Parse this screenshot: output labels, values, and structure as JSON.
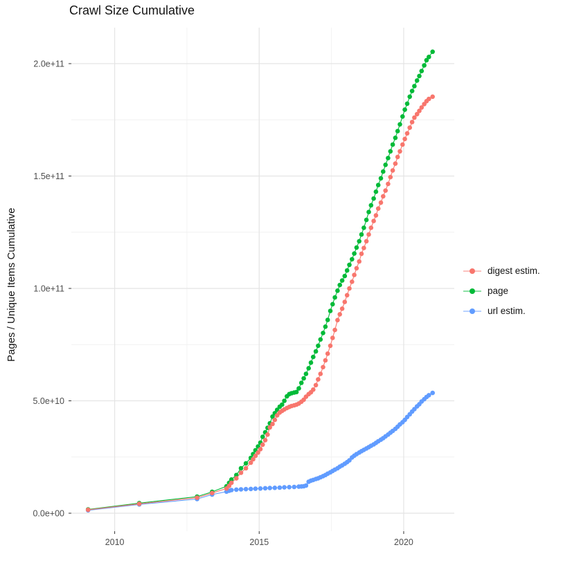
{
  "title": "Crawl Size Cumulative",
  "legend": {
    "position": "right",
    "items": [
      {
        "label": "digest estim.",
        "color": "#F8766D"
      },
      {
        "label": "page",
        "color": "#00BA38"
      },
      {
        "label": "url estim.",
        "color": "#619CFF"
      }
    ]
  },
  "colors": {
    "background": "#FFFFFF",
    "grid_major": "#E4E4E4",
    "grid_minor": "#F1F1F1",
    "tick_mark": "#333333",
    "tick_text": "#4D4D4D",
    "title_text": "#141414"
  },
  "chart_data": {
    "type": "scatter",
    "title": "Crawl Size Cumulative",
    "xlabel": "",
    "ylabel": "Pages / Unique Items Cumulative",
    "values_unit": "billion pages (multiply by 1e9)",
    "xlim": [
      2008.5,
      2021.75
    ],
    "ylim_billions": [
      -8,
      216
    ],
    "grid": "on",
    "legend_position": "right",
    "x_ticks": [
      {
        "value": 2010,
        "label": "2010"
      },
      {
        "value": 2015,
        "label": "2015"
      },
      {
        "value": 2020,
        "label": "2020"
      }
    ],
    "x_minor": [
      2012.5,
      2017.5
    ],
    "y_ticks": [
      {
        "value": 0,
        "label": "0.0e+00"
      },
      {
        "value": 50,
        "label": "5.0e+10"
      },
      {
        "value": 100,
        "label": "1.0e+11"
      },
      {
        "value": 150,
        "label": "1.5e+11"
      },
      {
        "value": 200,
        "label": "2.0e+11"
      }
    ],
    "y_minor": [
      25,
      75,
      125,
      175
    ],
    "series": [
      {
        "name": "url estim.",
        "color": "#619CFF",
        "points": [
          [
            2009.08,
            1.3
          ],
          [
            2010.85,
            3.9
          ],
          [
            2012.85,
            6.3
          ],
          [
            2013.37,
            8.3
          ],
          [
            2013.87,
            9.6
          ],
          [
            2013.96,
            10.0
          ],
          [
            2014.04,
            10.3
          ],
          [
            2014.21,
            10.5
          ],
          [
            2014.37,
            10.6
          ],
          [
            2014.54,
            10.7
          ],
          [
            2014.71,
            10.8
          ],
          [
            2014.87,
            10.9
          ],
          [
            2015.04,
            11.0
          ],
          [
            2015.21,
            11.1
          ],
          [
            2015.37,
            11.2
          ],
          [
            2015.54,
            11.3
          ],
          [
            2015.71,
            11.4
          ],
          [
            2015.87,
            11.5
          ],
          [
            2016.04,
            11.6
          ],
          [
            2016.21,
            11.7
          ],
          [
            2016.37,
            11.8
          ],
          [
            2016.46,
            11.9
          ],
          [
            2016.54,
            12.0
          ],
          [
            2016.62,
            12.3
          ],
          [
            2016.71,
            14.0
          ],
          [
            2016.79,
            14.5
          ],
          [
            2016.87,
            14.8
          ],
          [
            2016.96,
            15.2
          ],
          [
            2017.04,
            15.5
          ],
          [
            2017.12,
            16.0
          ],
          [
            2017.21,
            16.5
          ],
          [
            2017.29,
            17.0
          ],
          [
            2017.37,
            17.6
          ],
          [
            2017.46,
            18.2
          ],
          [
            2017.54,
            18.8
          ],
          [
            2017.62,
            19.4
          ],
          [
            2017.71,
            20.0
          ],
          [
            2017.79,
            20.7
          ],
          [
            2017.87,
            21.3
          ],
          [
            2017.96,
            22.0
          ],
          [
            2018.04,
            22.7
          ],
          [
            2018.12,
            23.5
          ],
          [
            2018.21,
            24.8
          ],
          [
            2018.29,
            25.6
          ],
          [
            2018.37,
            26.3
          ],
          [
            2018.46,
            27.0
          ],
          [
            2018.54,
            27.6
          ],
          [
            2018.62,
            28.2
          ],
          [
            2018.71,
            28.8
          ],
          [
            2018.79,
            29.4
          ],
          [
            2018.87,
            30.0
          ],
          [
            2018.96,
            30.6
          ],
          [
            2019.04,
            31.3
          ],
          [
            2019.12,
            32.0
          ],
          [
            2019.21,
            32.7
          ],
          [
            2019.29,
            33.4
          ],
          [
            2019.37,
            34.2
          ],
          [
            2019.46,
            35.0
          ],
          [
            2019.54,
            35.8
          ],
          [
            2019.62,
            36.6
          ],
          [
            2019.71,
            37.5
          ],
          [
            2019.79,
            38.5
          ],
          [
            2019.87,
            39.5
          ],
          [
            2019.96,
            40.5
          ],
          [
            2020.04,
            41.5
          ],
          [
            2020.12,
            42.8
          ],
          [
            2020.21,
            44.0
          ],
          [
            2020.29,
            45.2
          ],
          [
            2020.37,
            46.3
          ],
          [
            2020.46,
            47.5
          ],
          [
            2020.54,
            48.5
          ],
          [
            2020.62,
            49.7
          ],
          [
            2020.71,
            50.7
          ],
          [
            2020.79,
            51.7
          ],
          [
            2020.87,
            52.5
          ],
          [
            2021.0,
            53.5
          ]
        ]
      },
      {
        "name": "page",
        "color": "#00BA38",
        "points": [
          [
            2009.08,
            1.7
          ],
          [
            2010.85,
            4.5
          ],
          [
            2012.85,
            7.4
          ],
          [
            2013.37,
            9.5
          ],
          [
            2013.87,
            12.0
          ],
          [
            2013.96,
            13.5
          ],
          [
            2014.04,
            15.0
          ],
          [
            2014.21,
            17.0
          ],
          [
            2014.37,
            20.0
          ],
          [
            2014.54,
            22.2
          ],
          [
            2014.71,
            24.6
          ],
          [
            2014.79,
            26.3
          ],
          [
            2014.87,
            28.0
          ],
          [
            2014.96,
            29.7
          ],
          [
            2015.04,
            31.4
          ],
          [
            2015.12,
            34.0
          ],
          [
            2015.21,
            36.0
          ],
          [
            2015.29,
            38.0
          ],
          [
            2015.37,
            40.0
          ],
          [
            2015.46,
            43.0
          ],
          [
            2015.54,
            44.5
          ],
          [
            2015.62,
            46.0
          ],
          [
            2015.71,
            47.4
          ],
          [
            2015.79,
            48.3
          ],
          [
            2015.87,
            50.0
          ],
          [
            2015.96,
            52.0
          ],
          [
            2016.04,
            53.0
          ],
          [
            2016.12,
            53.4
          ],
          [
            2016.21,
            53.7
          ],
          [
            2016.29,
            53.9
          ],
          [
            2016.37,
            55.5
          ],
          [
            2016.46,
            58.0
          ],
          [
            2016.54,
            60.0
          ],
          [
            2016.62,
            62.0
          ],
          [
            2016.71,
            64.5
          ],
          [
            2016.79,
            67.0
          ],
          [
            2016.87,
            69.5
          ],
          [
            2016.96,
            72.0
          ],
          [
            2017.04,
            74.5
          ],
          [
            2017.12,
            77.3
          ],
          [
            2017.21,
            80.2
          ],
          [
            2017.29,
            83.0
          ],
          [
            2017.37,
            86.0
          ],
          [
            2017.46,
            90.0
          ],
          [
            2017.54,
            93.0
          ],
          [
            2017.62,
            96.0
          ],
          [
            2017.71,
            99.0
          ],
          [
            2017.79,
            101.5
          ],
          [
            2017.87,
            103.5
          ],
          [
            2017.96,
            105.5
          ],
          [
            2018.04,
            108.0
          ],
          [
            2018.12,
            110.5
          ],
          [
            2018.21,
            113.0
          ],
          [
            2018.29,
            115.5
          ],
          [
            2018.37,
            118.2
          ],
          [
            2018.46,
            121.0
          ],
          [
            2018.54,
            124.0
          ],
          [
            2018.62,
            127.0
          ],
          [
            2018.71,
            130.5
          ],
          [
            2018.79,
            134.0
          ],
          [
            2018.87,
            137.0
          ],
          [
            2018.96,
            140.0
          ],
          [
            2019.04,
            143.0
          ],
          [
            2019.12,
            146.0
          ],
          [
            2019.21,
            149.0
          ],
          [
            2019.29,
            152.0
          ],
          [
            2019.37,
            155.0
          ],
          [
            2019.46,
            158.0
          ],
          [
            2019.54,
            161.0
          ],
          [
            2019.62,
            164.0
          ],
          [
            2019.71,
            167.0
          ],
          [
            2019.79,
            170.0
          ],
          [
            2019.87,
            173.0
          ],
          [
            2019.96,
            176.5
          ],
          [
            2020.04,
            179.5
          ],
          [
            2020.12,
            182.2
          ],
          [
            2020.21,
            185.3
          ],
          [
            2020.29,
            187.8
          ],
          [
            2020.37,
            190.0
          ],
          [
            2020.46,
            192.5
          ],
          [
            2020.54,
            194.5
          ],
          [
            2020.62,
            196.7
          ],
          [
            2020.71,
            199.2
          ],
          [
            2020.79,
            201.5
          ],
          [
            2020.87,
            203.0
          ],
          [
            2021.0,
            205.3
          ]
        ]
      },
      {
        "name": "digest estim.",
        "color": "#F8766D",
        "points": [
          [
            2009.08,
            1.5
          ],
          [
            2010.85,
            4.2
          ],
          [
            2012.85,
            6.9
          ],
          [
            2013.37,
            9.0
          ],
          [
            2013.87,
            11.0
          ],
          [
            2013.96,
            12.2
          ],
          [
            2014.04,
            13.5
          ],
          [
            2014.21,
            15.5
          ],
          [
            2014.37,
            18.0
          ],
          [
            2014.54,
            20.0
          ],
          [
            2014.71,
            22.5
          ],
          [
            2014.79,
            24.0
          ],
          [
            2014.87,
            25.5
          ],
          [
            2014.96,
            27.0
          ],
          [
            2015.04,
            28.5
          ],
          [
            2015.12,
            30.5
          ],
          [
            2015.21,
            32.5
          ],
          [
            2015.29,
            35.0
          ],
          [
            2015.37,
            38.2
          ],
          [
            2015.46,
            39.7
          ],
          [
            2015.54,
            41.5
          ],
          [
            2015.62,
            43.5
          ],
          [
            2015.71,
            44.8
          ],
          [
            2015.79,
            45.5
          ],
          [
            2015.87,
            46.2
          ],
          [
            2015.96,
            46.8
          ],
          [
            2016.04,
            47.3
          ],
          [
            2016.12,
            47.7
          ],
          [
            2016.21,
            48.0
          ],
          [
            2016.29,
            48.3
          ],
          [
            2016.37,
            48.8
          ],
          [
            2016.46,
            49.6
          ],
          [
            2016.54,
            50.5
          ],
          [
            2016.62,
            51.8
          ],
          [
            2016.71,
            53.0
          ],
          [
            2016.79,
            53.8
          ],
          [
            2016.87,
            55.0
          ],
          [
            2016.96,
            57.0
          ],
          [
            2017.04,
            59.5
          ],
          [
            2017.12,
            62.0
          ],
          [
            2017.21,
            65.0
          ],
          [
            2017.29,
            68.0
          ],
          [
            2017.37,
            71.0
          ],
          [
            2017.46,
            74.5
          ],
          [
            2017.54,
            78.0
          ],
          [
            2017.62,
            81.5
          ],
          [
            2017.71,
            85.9
          ],
          [
            2017.79,
            88.5
          ],
          [
            2017.87,
            91.0
          ],
          [
            2017.96,
            94.0
          ],
          [
            2018.04,
            97.0
          ],
          [
            2018.12,
            100.0
          ],
          [
            2018.21,
            103.0
          ],
          [
            2018.29,
            106.0
          ],
          [
            2018.37,
            109.0
          ],
          [
            2018.46,
            112.0
          ],
          [
            2018.54,
            115.4
          ],
          [
            2018.62,
            118.0
          ],
          [
            2018.71,
            121.0
          ],
          [
            2018.79,
            124.0
          ],
          [
            2018.87,
            127.0
          ],
          [
            2018.96,
            130.0
          ],
          [
            2019.04,
            132.5
          ],
          [
            2019.12,
            135.5
          ],
          [
            2019.21,
            138.2
          ],
          [
            2019.29,
            141.0
          ],
          [
            2019.37,
            143.5
          ],
          [
            2019.46,
            146.5
          ],
          [
            2019.54,
            149.5
          ],
          [
            2019.62,
            152.5
          ],
          [
            2019.71,
            155.5
          ],
          [
            2019.79,
            158.5
          ],
          [
            2019.87,
            161.0
          ],
          [
            2019.96,
            164.0
          ],
          [
            2020.04,
            166.5
          ],
          [
            2020.12,
            169.0
          ],
          [
            2020.21,
            171.5
          ],
          [
            2020.29,
            174.0
          ],
          [
            2020.37,
            176.0
          ],
          [
            2020.46,
            177.5
          ],
          [
            2020.54,
            179.0
          ],
          [
            2020.62,
            180.5
          ],
          [
            2020.71,
            182.0
          ],
          [
            2020.79,
            183.3
          ],
          [
            2020.87,
            184.3
          ],
          [
            2021.0,
            185.3
          ]
        ]
      }
    ]
  }
}
